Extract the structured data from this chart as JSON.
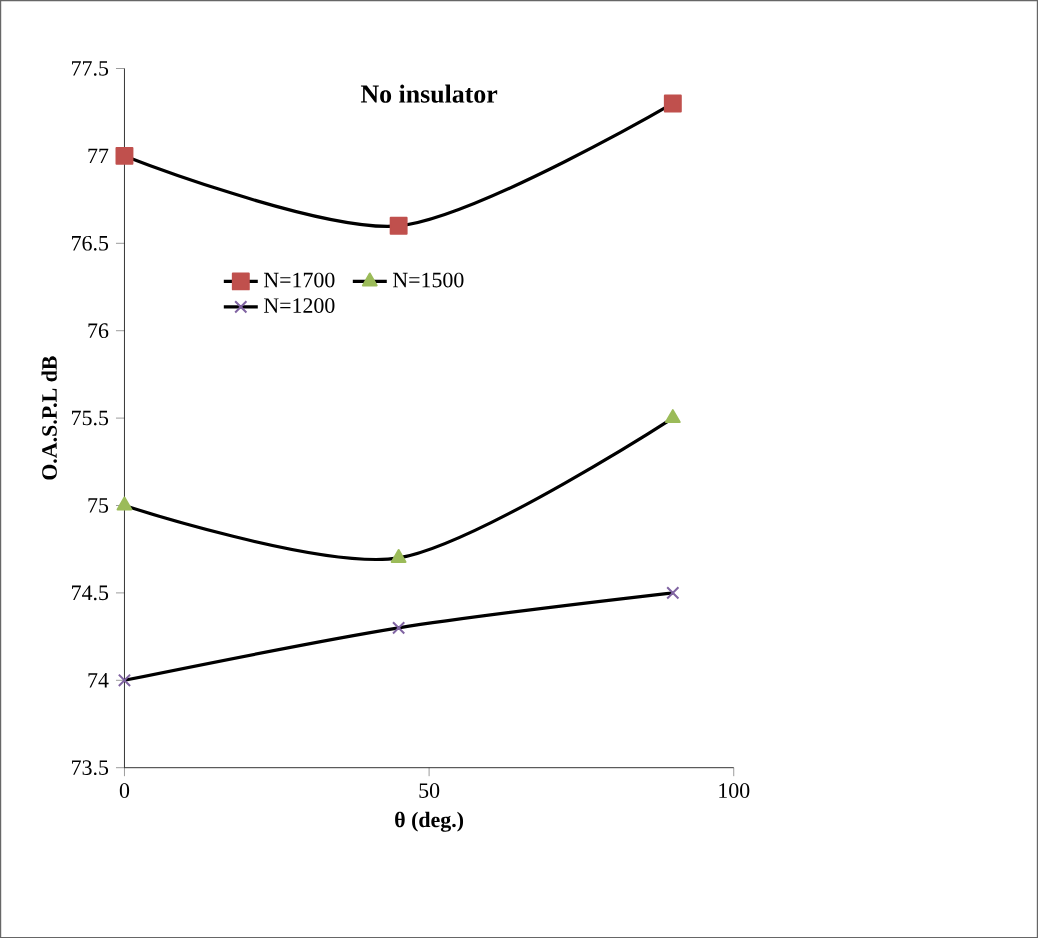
{
  "chart_data": {
    "type": "line",
    "title": "No insulator",
    "xlabel": "θ  (deg.)",
    "ylabel": "O.A.S.P.L  dB",
    "x": [
      0,
      45,
      90
    ],
    "series": [
      {
        "name": "N=1700",
        "color": "#c0504d",
        "marker": "square",
        "values": [
          77,
          76.6,
          77.3
        ]
      },
      {
        "name": "N=1500",
        "color": "#9bbb59",
        "marker": "triangle",
        "values": [
          75,
          74.7,
          75.5
        ]
      },
      {
        "name": "N=1200",
        "color": "#8064a2",
        "marker": "cross",
        "values": [
          74,
          74.3,
          74.5
        ]
      }
    ],
    "xlim": [
      0,
      100
    ],
    "xticks": [
      0,
      50,
      100
    ],
    "ylim": [
      73.5,
      77.5
    ],
    "yticks": [
      73.5,
      74,
      74.5,
      75,
      75.5,
      76,
      76.5,
      77,
      77.5
    ],
    "grid": false,
    "legend": "top",
    "line_style": "solid"
  }
}
